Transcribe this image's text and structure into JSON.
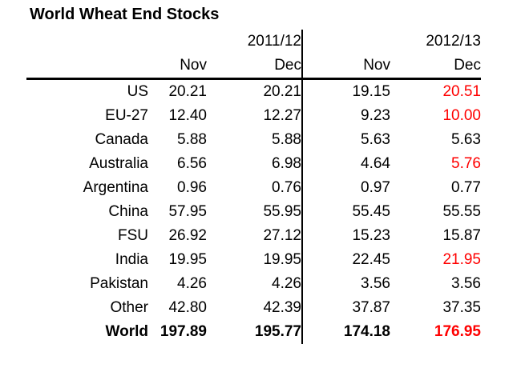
{
  "title": "World Wheat End Stocks",
  "colors": {
    "text": "#000000",
    "highlight_red": "#ff0000",
    "rule": "#000000",
    "background": "#ffffff"
  },
  "chart_data": {
    "type": "table",
    "title": "World Wheat End Stocks",
    "column_groups": [
      {
        "label": "2011/12",
        "columns": [
          "Nov",
          "Dec"
        ]
      },
      {
        "label": "2012/13",
        "columns": [
          "Nov",
          "Dec"
        ]
      }
    ],
    "month_headers": [
      "Nov",
      "Dec",
      "Nov",
      "Dec"
    ],
    "rows": [
      {
        "label": "US",
        "cells": [
          {
            "v": "20.21"
          },
          {
            "v": "20.21"
          },
          {
            "v": "19.15"
          },
          {
            "v": "20.51",
            "red": true
          }
        ]
      },
      {
        "label": "EU-27",
        "cells": [
          {
            "v": "12.40"
          },
          {
            "v": "12.27"
          },
          {
            "v": "9.23"
          },
          {
            "v": "10.00",
            "red": true
          }
        ]
      },
      {
        "label": "Canada",
        "cells": [
          {
            "v": "5.88"
          },
          {
            "v": "5.88"
          },
          {
            "v": "5.63"
          },
          {
            "v": "5.63"
          }
        ]
      },
      {
        "label": "Australia",
        "cells": [
          {
            "v": "6.56"
          },
          {
            "v": "6.98"
          },
          {
            "v": "4.64"
          },
          {
            "v": "5.76",
            "red": true
          }
        ]
      },
      {
        "label": "Argentina",
        "cells": [
          {
            "v": "0.96"
          },
          {
            "v": "0.76"
          },
          {
            "v": "0.97"
          },
          {
            "v": "0.77"
          }
        ]
      },
      {
        "label": "China",
        "cells": [
          {
            "v": "57.95"
          },
          {
            "v": "55.95"
          },
          {
            "v": "55.45"
          },
          {
            "v": "55.55"
          }
        ]
      },
      {
        "label": "FSU",
        "cells": [
          {
            "v": "26.92"
          },
          {
            "v": "27.12"
          },
          {
            "v": "15.23"
          },
          {
            "v": "15.87"
          }
        ]
      },
      {
        "label": "India",
        "cells": [
          {
            "v": "19.95"
          },
          {
            "v": "19.95"
          },
          {
            "v": "22.45"
          },
          {
            "v": "21.95",
            "red": true
          }
        ]
      },
      {
        "label": "Pakistan",
        "cells": [
          {
            "v": "4.26"
          },
          {
            "v": "4.26"
          },
          {
            "v": "3.56"
          },
          {
            "v": "3.56"
          }
        ]
      },
      {
        "label": "Other",
        "cells": [
          {
            "v": "42.80"
          },
          {
            "v": "42.39"
          },
          {
            "v": "37.87"
          },
          {
            "v": "37.35"
          }
        ]
      },
      {
        "label": "World",
        "bold": true,
        "cells": [
          {
            "v": "197.89"
          },
          {
            "v": "195.77"
          },
          {
            "v": "174.18"
          },
          {
            "v": "176.95",
            "red": true
          }
        ]
      }
    ]
  }
}
